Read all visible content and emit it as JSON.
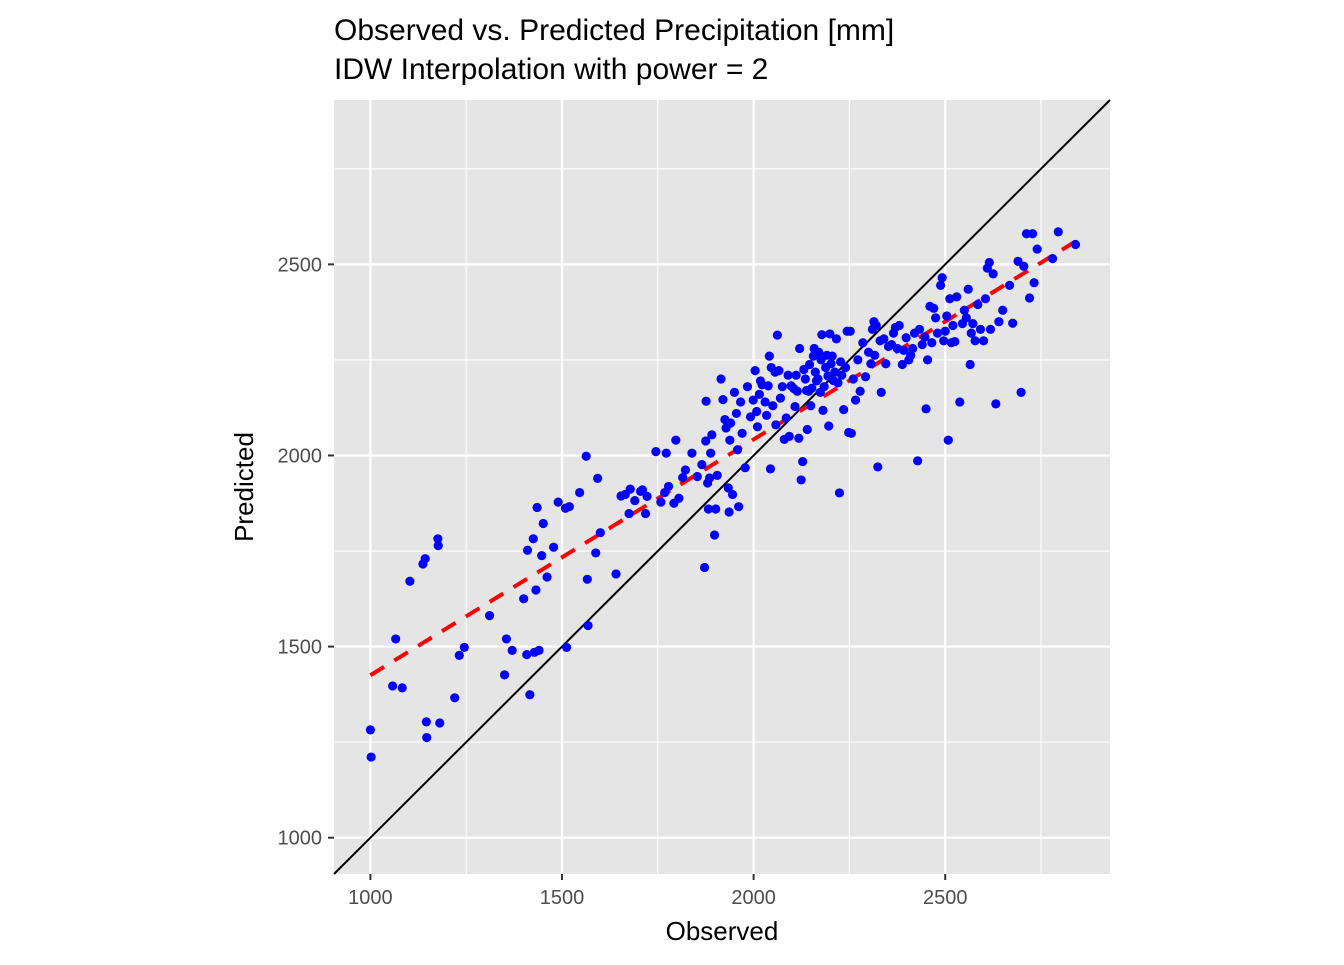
{
  "chart_data": {
    "type": "scatter",
    "title": "Observed vs. Predicted Precipitation [mm]",
    "subtitle": "IDW Interpolation with power = 2",
    "xlabel": "Observed",
    "ylabel": "Predicted",
    "xlim": [
      905,
      2930
    ],
    "ylim": [
      905,
      2930
    ],
    "xticks": [
      1000,
      1500,
      2000,
      2500
    ],
    "yticks": [
      1000,
      1500,
      2000,
      2500
    ],
    "minor_breaks": [
      1250,
      1750,
      2250,
      2750
    ],
    "grid": true,
    "panel_background": "#e5e5e5",
    "grid_color": "#ffffff",
    "point_color": "#0000ff",
    "identity_line": {
      "slope": 1,
      "intercept": 0,
      "color": "#000000"
    },
    "fit_line": {
      "color": "#ff0000",
      "style": "dashed",
      "from": [
        1000,
        1425
      ],
      "to": [
        2840,
        2560
      ]
    },
    "points": [
      [
        1000,
        1282
      ],
      [
        1002,
        1211
      ],
      [
        1058,
        1397
      ],
      [
        1066,
        1520
      ],
      [
        1083,
        1392
      ],
      [
        1103,
        1671
      ],
      [
        1137,
        1716
      ],
      [
        1143,
        1730
      ],
      [
        1146,
        1303
      ],
      [
        1147,
        1262
      ],
      [
        1176,
        1782
      ],
      [
        1177,
        1764
      ],
      [
        1181,
        1300
      ],
      [
        1220,
        1366
      ],
      [
        1232,
        1477
      ],
      [
        1245,
        1498
      ],
      [
        1311,
        1581
      ],
      [
        1350,
        1426
      ],
      [
        1355,
        1520
      ],
      [
        1370,
        1490
      ],
      [
        1400,
        1625
      ],
      [
        1408,
        1479
      ],
      [
        1410,
        1752
      ],
      [
        1416,
        1374
      ],
      [
        1425,
        1782
      ],
      [
        1428,
        1485
      ],
      [
        1432,
        1648
      ],
      [
        1435,
        1864
      ],
      [
        1440,
        1490
      ],
      [
        1447,
        1738
      ],
      [
        1451,
        1822
      ],
      [
        1461,
        1682
      ],
      [
        1478,
        1760
      ],
      [
        1490,
        1878
      ],
      [
        1509,
        1862
      ],
      [
        1512,
        1498
      ],
      [
        1519,
        1866
      ],
      [
        1546,
        1903
      ],
      [
        1563,
        1998
      ],
      [
        1566,
        1676
      ],
      [
        1568,
        1555
      ],
      [
        1588,
        1745
      ],
      [
        1593,
        1940
      ],
      [
        1600,
        1798
      ],
      [
        1641,
        1690
      ],
      [
        1654,
        1894
      ],
      [
        1665,
        1898
      ],
      [
        1675,
        1848
      ],
      [
        1678,
        1912
      ],
      [
        1690,
        1882
      ],
      [
        1705,
        1906
      ],
      [
        1710,
        1910
      ],
      [
        1718,
        1848
      ],
      [
        1722,
        1893
      ],
      [
        1745,
        2010
      ],
      [
        1758,
        1878
      ],
      [
        1768,
        1903
      ],
      [
        1772,
        2006
      ],
      [
        1778,
        1919
      ],
      [
        1792,
        1875
      ],
      [
        1797,
        2040
      ],
      [
        1805,
        1888
      ],
      [
        1815,
        1942
      ],
      [
        1822,
        1962
      ],
      [
        1839,
        2006
      ],
      [
        1853,
        1945
      ],
      [
        1865,
        1976
      ],
      [
        1872,
        1707
      ],
      [
        1875,
        2038
      ],
      [
        1876,
        2142
      ],
      [
        1880,
        1928
      ],
      [
        1882,
        1860
      ],
      [
        1885,
        1941
      ],
      [
        1888,
        2006
      ],
      [
        1891,
        2054
      ],
      [
        1898,
        1792
      ],
      [
        1901,
        1860
      ],
      [
        1905,
        1948
      ],
      [
        1915,
        2200
      ],
      [
        1920,
        2146
      ],
      [
        1925,
        2094
      ],
      [
        1928,
        2072
      ],
      [
        1934,
        1915
      ],
      [
        1936,
        1852
      ],
      [
        1938,
        2040
      ],
      [
        1940,
        2085
      ],
      [
        1945,
        1898
      ],
      [
        1950,
        2165
      ],
      [
        1955,
        2110
      ],
      [
        1958,
        2015
      ],
      [
        1961,
        1866
      ],
      [
        1966,
        2140
      ],
      [
        1970,
        2058
      ],
      [
        1978,
        1968
      ],
      [
        1984,
        2180
      ],
      [
        1992,
        2101
      ],
      [
        1999,
        2145
      ],
      [
        2004,
        2222
      ],
      [
        2008,
        2115
      ],
      [
        2010,
        2075
      ],
      [
        2015,
        2160
      ],
      [
        2018,
        2195
      ],
      [
        2022,
        2185
      ],
      [
        2030,
        2140
      ],
      [
        2034,
        2105
      ],
      [
        2038,
        2182
      ],
      [
        2041,
        2260
      ],
      [
        2044,
        1965
      ],
      [
        2046,
        2230
      ],
      [
        2050,
        2130
      ],
      [
        2056,
        2218
      ],
      [
        2058,
        2080
      ],
      [
        2062,
        2315
      ],
      [
        2066,
        2222
      ],
      [
        2070,
        2150
      ],
      [
        2075,
        2180
      ],
      [
        2080,
        2042
      ],
      [
        2085,
        2098
      ],
      [
        2090,
        2210
      ],
      [
        2093,
        2050
      ],
      [
        2098,
        2182
      ],
      [
        2105,
        2175
      ],
      [
        2108,
        2128
      ],
      [
        2111,
        2210
      ],
      [
        2114,
        2168
      ],
      [
        2118,
        2045
      ],
      [
        2120,
        2280
      ],
      [
        2124,
        1936
      ],
      [
        2128,
        1984
      ],
      [
        2131,
        2225
      ],
      [
        2135,
        2200
      ],
      [
        2138,
        2170
      ],
      [
        2140,
        2068
      ],
      [
        2144,
        2168
      ],
      [
        2146,
        2238
      ],
      [
        2149,
        2130
      ],
      [
        2152,
        2176
      ],
      [
        2156,
        2260
      ],
      [
        2158,
        2280
      ],
      [
        2161,
        2218
      ],
      [
        2164,
        2195
      ],
      [
        2168,
        2200
      ],
      [
        2170,
        2270
      ],
      [
        2174,
        2165
      ],
      [
        2176,
        2250
      ],
      [
        2178,
        2316
      ],
      [
        2181,
        2118
      ],
      [
        2184,
        2180
      ],
      [
        2188,
        2230
      ],
      [
        2191,
        2262
      ],
      [
        2194,
        2208
      ],
      [
        2196,
        2077
      ],
      [
        2199,
        2318
      ],
      [
        2202,
        2240
      ],
      [
        2205,
        2260
      ],
      [
        2208,
        2196
      ],
      [
        2212,
        2218
      ],
      [
        2216,
        2305
      ],
      [
        2220,
        2190
      ],
      [
        2224,
        1902
      ],
      [
        2227,
        2245
      ],
      [
        2230,
        2210
      ],
      [
        2235,
        2120
      ],
      [
        2240,
        2230
      ],
      [
        2244,
        2325
      ],
      [
        2248,
        2060
      ],
      [
        2252,
        2325
      ],
      [
        2255,
        2058
      ],
      [
        2260,
        2200
      ],
      [
        2266,
        2145
      ],
      [
        2272,
        2250
      ],
      [
        2278,
        2168
      ],
      [
        2285,
        2295
      ],
      [
        2292,
        2206
      ],
      [
        2300,
        2270
      ],
      [
        2306,
        2240
      ],
      [
        2310,
        2330
      ],
      [
        2314,
        2350
      ],
      [
        2316,
        2262
      ],
      [
        2320,
        2340
      ],
      [
        2324,
        1970
      ],
      [
        2330,
        2300
      ],
      [
        2333,
        2165
      ],
      [
        2340,
        2305
      ],
      [
        2345,
        2240
      ],
      [
        2352,
        2285
      ],
      [
        2360,
        2290
      ],
      [
        2365,
        2320
      ],
      [
        2370,
        2335
      ],
      [
        2375,
        2280
      ],
      [
        2380,
        2340
      ],
      [
        2388,
        2238
      ],
      [
        2392,
        2275
      ],
      [
        2398,
        2308
      ],
      [
        2405,
        2250
      ],
      [
        2410,
        2262
      ],
      [
        2415,
        2280
      ],
      [
        2420,
        2320
      ],
      [
        2428,
        1986
      ],
      [
        2433,
        2330
      ],
      [
        2440,
        2290
      ],
      [
        2447,
        2310
      ],
      [
        2450,
        2122
      ],
      [
        2454,
        2250
      ],
      [
        2460,
        2390
      ],
      [
        2465,
        2295
      ],
      [
        2470,
        2385
      ],
      [
        2475,
        2360
      ],
      [
        2480,
        2320
      ],
      [
        2488,
        2445
      ],
      [
        2492,
        2465
      ],
      [
        2496,
        2300
      ],
      [
        2500,
        2325
      ],
      [
        2504,
        2365
      ],
      [
        2508,
        2040
      ],
      [
        2512,
        2410
      ],
      [
        2516,
        2295
      ],
      [
        2520,
        2340
      ],
      [
        2525,
        2298
      ],
      [
        2530,
        2415
      ],
      [
        2538,
        2140
      ],
      [
        2545,
        2345
      ],
      [
        2550,
        2380
      ],
      [
        2555,
        2360
      ],
      [
        2560,
        2435
      ],
      [
        2565,
        2238
      ],
      [
        2568,
        2320
      ],
      [
        2572,
        2345
      ],
      [
        2578,
        2300
      ],
      [
        2585,
        2395
      ],
      [
        2592,
        2330
      ],
      [
        2600,
        2300
      ],
      [
        2605,
        2410
      ],
      [
        2610,
        2490
      ],
      [
        2615,
        2505
      ],
      [
        2618,
        2330
      ],
      [
        2625,
        2475
      ],
      [
        2632,
        2135
      ],
      [
        2640,
        2350
      ],
      [
        2650,
        2380
      ],
      [
        2668,
        2445
      ],
      [
        2676,
        2346
      ],
      [
        2690,
        2508
      ],
      [
        2698,
        2165
      ],
      [
        2705,
        2495
      ],
      [
        2712,
        2580
      ],
      [
        2720,
        2412
      ],
      [
        2728,
        2580
      ],
      [
        2732,
        2452
      ],
      [
        2740,
        2540
      ],
      [
        2780,
        2515
      ],
      [
        2795,
        2585
      ],
      [
        2840,
        2552
      ]
    ]
  }
}
